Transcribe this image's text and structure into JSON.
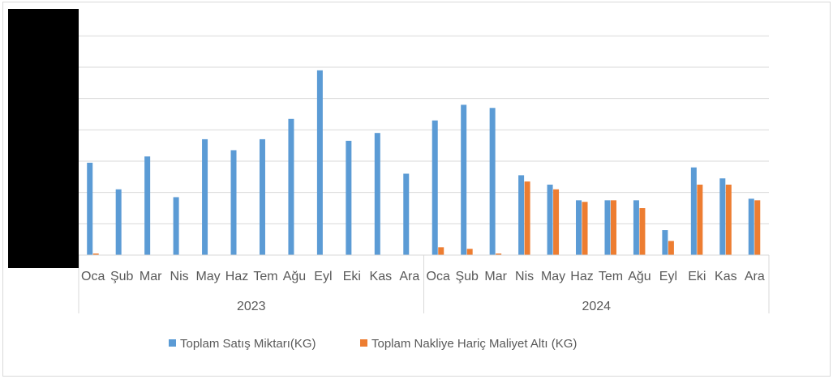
{
  "chart_data": {
    "type": "bar",
    "title": "",
    "xlabel": "",
    "ylabel": "",
    "groups": [
      {
        "label": "2023",
        "categories": [
          "Oca",
          "Şub",
          "Mar",
          "Nis",
          "May",
          "Haz",
          "Tem",
          "Ağu",
          "Eyl",
          "Eki",
          "Kas",
          "Ara"
        ]
      },
      {
        "label": "2024",
        "categories": [
          "Oca",
          "Şub",
          "Mar",
          "Nis",
          "May",
          "Haz",
          "Tem",
          "Ağu",
          "Eyl",
          "Eki",
          "Kas",
          "Ara"
        ]
      }
    ],
    "ylim": [
      0,
      7.5
    ],
    "grid": true,
    "legend": "bottom",
    "series": [
      {
        "name": "Toplam Satış Miktarı(KG)",
        "color": "#5b9bd5",
        "values": [
          2.95,
          2.1,
          3.15,
          1.85,
          3.7,
          3.35,
          3.7,
          4.35,
          5.9,
          3.65,
          3.9,
          2.6,
          4.3,
          4.8,
          4.7,
          2.55,
          2.25,
          1.75,
          1.75,
          1.75,
          0.8,
          2.8,
          2.45,
          1.8
        ]
      },
      {
        "name": "Toplam Nakliye Hariç Maliyet Altı (KG)",
        "color": "#ed7d31",
        "values": [
          0.05,
          0,
          0,
          0,
          0,
          0,
          0,
          0,
          0,
          0,
          0,
          0,
          0.25,
          0.2,
          0.05,
          2.35,
          2.1,
          1.7,
          1.75,
          1.5,
          0.45,
          2.25,
          2.25,
          1.75
        ]
      }
    ]
  }
}
